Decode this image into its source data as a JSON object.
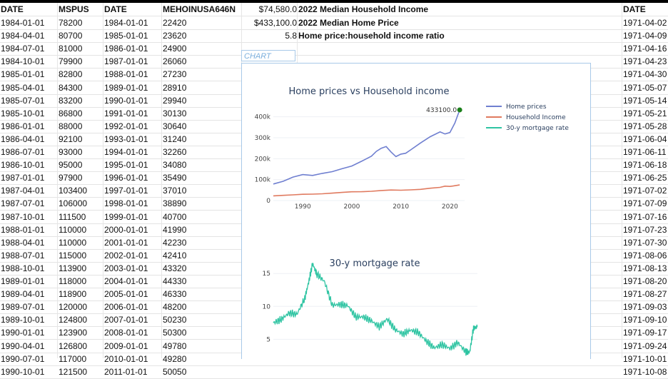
{
  "sheet": {
    "headers": [
      "DATE",
      "MSPUS",
      "DATE",
      "MEHOINUSA646N",
      "DATE"
    ],
    "summary": [
      {
        "value": "$74,580.0",
        "label": "2022 Median Household Income"
      },
      {
        "value": "$433,100.0",
        "label": "2022 Median Home Price"
      },
      {
        "value": "5.8",
        "label": "Home price:household income ratio"
      }
    ],
    "chart_tag": "CHART",
    "rows": [
      {
        "a": "1984-01-01",
        "b": "78200",
        "c": "1984-01-01",
        "d": "22420",
        "z": "1971-04-02"
      },
      {
        "a": "1984-04-01",
        "b": "80700",
        "c": "1985-01-01",
        "d": "23620",
        "z": "1971-04-09"
      },
      {
        "a": "1984-07-01",
        "b": "81000",
        "c": "1986-01-01",
        "d": "24900",
        "z": "1971-04-16"
      },
      {
        "a": "1984-10-01",
        "b": "79900",
        "c": "1987-01-01",
        "d": "26060",
        "z": "1971-04-23"
      },
      {
        "a": "1985-01-01",
        "b": "82800",
        "c": "1988-01-01",
        "d": "27230",
        "z": "1971-04-30"
      },
      {
        "a": "1985-04-01",
        "b": "84300",
        "c": "1989-01-01",
        "d": "28910",
        "z": "1971-05-07"
      },
      {
        "a": "1985-07-01",
        "b": "83200",
        "c": "1990-01-01",
        "d": "29940",
        "z": "1971-05-14"
      },
      {
        "a": "1985-10-01",
        "b": "86800",
        "c": "1991-01-01",
        "d": "30130",
        "z": "1971-05-21"
      },
      {
        "a": "1986-01-01",
        "b": "88000",
        "c": "1992-01-01",
        "d": "30640",
        "z": "1971-05-28"
      },
      {
        "a": "1986-04-01",
        "b": "92100",
        "c": "1993-01-01",
        "d": "31240",
        "z": "1971-06-04"
      },
      {
        "a": "1986-07-01",
        "b": "93000",
        "c": "1994-01-01",
        "d": "32260",
        "z": "1971-06-11"
      },
      {
        "a": "1986-10-01",
        "b": "95000",
        "c": "1995-01-01",
        "d": "34080",
        "z": "1971-06-18"
      },
      {
        "a": "1987-01-01",
        "b": "97900",
        "c": "1996-01-01",
        "d": "35490",
        "z": "1971-06-25"
      },
      {
        "a": "1987-04-01",
        "b": "103400",
        "c": "1997-01-01",
        "d": "37010",
        "z": "1971-07-02"
      },
      {
        "a": "1987-07-01",
        "b": "106000",
        "c": "1998-01-01",
        "d": "38890",
        "z": "1971-07-09"
      },
      {
        "a": "1987-10-01",
        "b": "111500",
        "c": "1999-01-01",
        "d": "40700",
        "z": "1971-07-16"
      },
      {
        "a": "1988-01-01",
        "b": "110000",
        "c": "2000-01-01",
        "d": "41990",
        "z": "1971-07-23"
      },
      {
        "a": "1988-04-01",
        "b": "110000",
        "c": "2001-01-01",
        "d": "42230",
        "z": "1971-07-30"
      },
      {
        "a": "1988-07-01",
        "b": "115000",
        "c": "2002-01-01",
        "d": "42410",
        "z": "1971-08-06"
      },
      {
        "a": "1988-10-01",
        "b": "113900",
        "c": "2003-01-01",
        "d": "43320",
        "z": "1971-08-13"
      },
      {
        "a": "1989-01-01",
        "b": "118000",
        "c": "2004-01-01",
        "d": "44330",
        "z": "1971-08-20"
      },
      {
        "a": "1989-04-01",
        "b": "118900",
        "c": "2005-01-01",
        "d": "46330",
        "z": "1971-08-27"
      },
      {
        "a": "1989-07-01",
        "b": "120000",
        "c": "2006-01-01",
        "d": "48200",
        "z": "1971-09-03"
      },
      {
        "a": "1989-10-01",
        "b": "124800",
        "c": "2007-01-01",
        "d": "50230",
        "z": "1971-09-10"
      },
      {
        "a": "1990-01-01",
        "b": "123900",
        "c": "2008-01-01",
        "d": "50300",
        "z": "1971-09-17"
      },
      {
        "a": "1990-04-01",
        "b": "126800",
        "c": "2009-01-01",
        "d": "49780",
        "z": "1971-09-24"
      },
      {
        "a": "1990-07-01",
        "b": "117000",
        "c": "2010-01-01",
        "d": "49280",
        "z": "1971-10-01"
      },
      {
        "a": "1990-10-01",
        "b": "121500",
        "c": "2011-01-01",
        "d": "50050",
        "z": "1971-10-08"
      }
    ]
  },
  "chart_data": [
    {
      "type": "line",
      "title": "Home prices vs Household income",
      "legend_position": "right",
      "xlim": [
        1984,
        2023
      ],
      "ylim": [
        0,
        450000
      ],
      "x_ticks": [
        "1990",
        "2000",
        "2010",
        "2020"
      ],
      "y_ticks": [
        "0",
        "100k",
        "200k",
        "300k",
        "400k"
      ],
      "annotation": {
        "text": "433100.0",
        "x": 2022,
        "y": 433100
      },
      "series": [
        {
          "name": "Home prices",
          "color": "#6f7fd0",
          "x": [
            1984,
            1986,
            1988,
            1990,
            1992,
            1994,
            1996,
            1998,
            2000,
            2002,
            2004,
            2005,
            2006,
            2007,
            2008,
            2009,
            2010,
            2011,
            2012,
            2014,
            2016,
            2018,
            2019,
            2020,
            2021,
            2022
          ],
          "y": [
            79000,
            92000,
            112000,
            124000,
            120000,
            130000,
            138000,
            152000,
            165000,
            188000,
            212000,
            235000,
            250000,
            258000,
            232000,
            210000,
            222000,
            226000,
            242000,
            275000,
            305000,
            328000,
            318000,
            325000,
            370000,
            433100
          ]
        },
        {
          "name": "Household Income",
          "color": "#e07a5f",
          "x": [
            1984,
            1986,
            1988,
            1990,
            1992,
            1994,
            1996,
            1998,
            2000,
            2002,
            2004,
            2006,
            2008,
            2010,
            2012,
            2014,
            2016,
            2018,
            2019,
            2020,
            2021,
            2022
          ],
          "y": [
            22420,
            24900,
            27230,
            29940,
            30640,
            32260,
            35490,
            38890,
            41990,
            42410,
            44330,
            48200,
            50300,
            49280,
            51020,
            53660,
            59040,
            63180,
            68700,
            67520,
            70780,
            74580
          ]
        },
        {
          "name": "30-y mortgage rate",
          "color": "#2ec4a2",
          "values": []
        }
      ]
    },
    {
      "type": "line",
      "title": "30-y mortgage rate",
      "xlim": [
        1971,
        2023
      ],
      "ylim": [
        2,
        16
      ],
      "y_ticks": [
        "5",
        "10",
        "15"
      ],
      "series": [
        {
          "name": "30-y mortgage rate",
          "color": "#2ec4a2",
          "x": [
            1971,
            1973,
            1975,
            1977,
            1979,
            1980,
            1981,
            1982,
            1984,
            1986,
            1988,
            1990,
            1992,
            1994,
            1996,
            1998,
            2000,
            2002,
            2004,
            2006,
            2008,
            2010,
            2012,
            2014,
            2016,
            2018,
            2020,
            2021,
            2022,
            2023
          ],
          "y": [
            7.5,
            8.0,
            9.0,
            8.8,
            11.2,
            13.7,
            16.5,
            15.0,
            13.8,
            10.2,
            10.3,
            10.1,
            8.4,
            8.4,
            7.8,
            6.9,
            8.1,
            6.5,
            5.8,
            6.4,
            6.0,
            4.7,
            3.7,
            4.2,
            3.6,
            4.5,
            3.1,
            3.0,
            6.7,
            6.9
          ]
        }
      ]
    }
  ]
}
